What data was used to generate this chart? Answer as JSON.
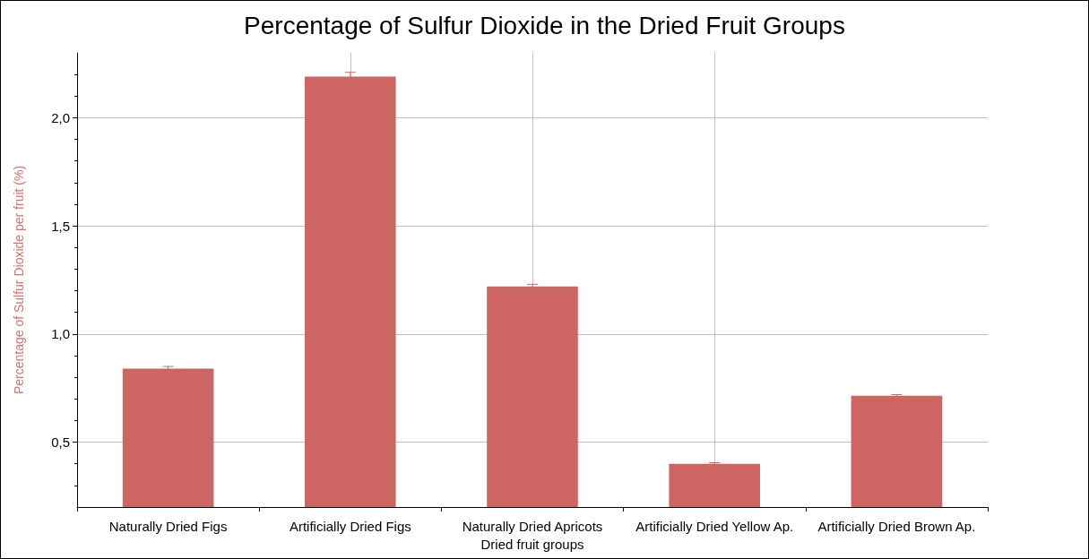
{
  "chart_data": {
    "type": "bar",
    "title": "Percentage of Sulfur Dioxide in the Dried Fruit Groups",
    "xlabel": "Dried fruit groups",
    "ylabel": "Percentage of Sulfur Dioxide per fruit (%)",
    "categories": [
      "Naturally Dried Figs",
      "Artificially Dried Figs",
      "Naturally Dried Apricots",
      "Artificially Dried Yellow Ap.",
      "Artificially Dried Brown Ap."
    ],
    "values": [
      0.84,
      2.19,
      1.22,
      0.4,
      0.715
    ],
    "errors": [
      0.01,
      0.02,
      0.01,
      0.005,
      0.005
    ],
    "color": "#cd6563",
    "ylim": [
      0.2,
      2.3
    ],
    "yticks": [
      {
        "value": 0.3,
        "label": null
      },
      {
        "value": 0.4,
        "label": null
      },
      {
        "value": 0.5,
        "label": "0,5"
      },
      {
        "value": 0.6,
        "label": null
      },
      {
        "value": 0.7,
        "label": null
      },
      {
        "value": 0.8,
        "label": null
      },
      {
        "value": 0.9,
        "label": null
      },
      {
        "value": 1,
        "label": "1,0"
      },
      {
        "value": 1.1,
        "label": null
      },
      {
        "value": 1.2,
        "label": null
      },
      {
        "value": 1.3,
        "label": null
      },
      {
        "value": 1.4,
        "label": null
      },
      {
        "value": 1.5,
        "label": "1,5"
      },
      {
        "value": 1.6,
        "label": null
      },
      {
        "value": 1.7,
        "label": null
      },
      {
        "value": 1.8,
        "label": null
      },
      {
        "value": 1.9,
        "label": null
      },
      {
        "value": 2,
        "label": "2,0"
      },
      {
        "value": 2.1,
        "label": null
      },
      {
        "value": 2.2,
        "label": null
      }
    ],
    "grid": true
  }
}
